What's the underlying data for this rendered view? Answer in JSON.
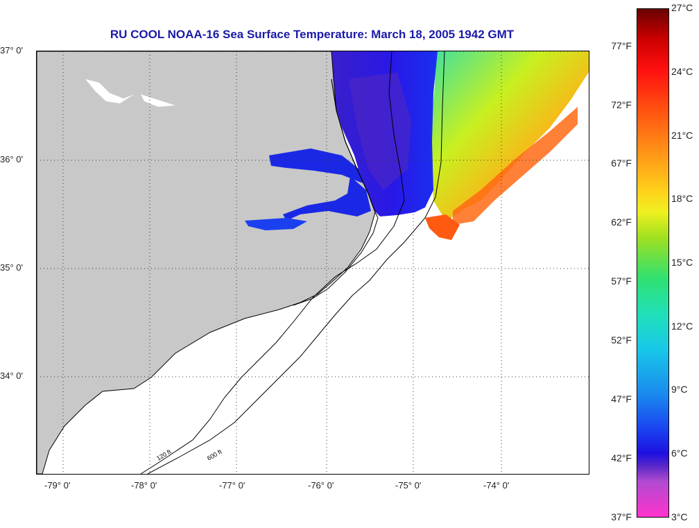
{
  "title": "RU COOL  NOAA-16  Sea Surface Temperature:  March 18, 2005 1942 GMT",
  "latitude_labels": [
    "37° 0'",
    "36° 0'",
    "35° 0'",
    "34° 0'"
  ],
  "longitude_labels": [
    "-79° 0'",
    "-78° 0'",
    "-77° 0'",
    "-76° 0'",
    "-75° 0'",
    "-74° 0'"
  ],
  "colorbar": {
    "fahrenheit_labels": [
      "77°F",
      "72°F",
      "67°F",
      "62°F",
      "57°F",
      "52°F",
      "47°F",
      "42°F",
      "37°F"
    ],
    "celsius_labels": [
      "27°C",
      "24°C",
      "21°C",
      "18°C",
      "15°C",
      "12°C",
      "9°C",
      "6°C",
      "3°C"
    ],
    "gradient_colors": [
      "#ff33cc",
      "#5a28c8",
      "#1e10e0",
      "#1a88ee",
      "#18c8e8",
      "#30e070",
      "#eef020",
      "#ff9a18",
      "#ff1010",
      "#6a0000"
    ]
  },
  "isobath_labels": [
    "120 ft",
    "600 ft"
  ],
  "colors": {
    "title": "#1a1aa8",
    "land": "#c8c8c8",
    "cold_water": "#1a28e6",
    "warm_water": "#ff6a14"
  }
}
